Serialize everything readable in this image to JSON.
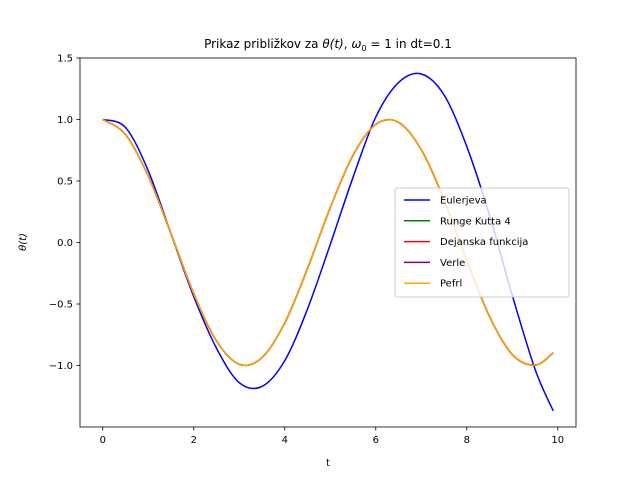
{
  "chart_data": {
    "type": "line",
    "title": "Prikaz približkov za θ(t), ω₀ = 1 in dt=0.1",
    "title_parts": {
      "prefix": "Prikaz približkov za ",
      "theta": "θ(t)",
      "sep": ", ",
      "omega": "ω",
      "omega_sub": "0",
      "suffix": " = 1 in dt=0.1"
    },
    "xlabel": "t",
    "ylabel": "θ(t)",
    "xlim": [
      -0.5,
      10.4
    ],
    "ylim": [
      -1.5,
      1.5
    ],
    "xticks": [
      0,
      2,
      4,
      6,
      8,
      10
    ],
    "xtick_labels": [
      "0",
      "2",
      "4",
      "6",
      "8",
      "10"
    ],
    "yticks": [
      1.5,
      1.0,
      0.5,
      0.0,
      -0.5,
      -1.0
    ],
    "ytick_labels": [
      "1.5",
      "1.0",
      "0.5",
      "0.0",
      "−0.5",
      "−1.0"
    ],
    "grid": false,
    "legend_position": "center-right",
    "series": [
      {
        "name": "Eulerjeva",
        "color": "#0000ff",
        "x": [
          0,
          0.5,
          1,
          1.5,
          2,
          2.5,
          3,
          3.5,
          4,
          4.5,
          5,
          5.5,
          6,
          6.5,
          7,
          7.5,
          8,
          8.5,
          9,
          9.5,
          9.9
        ],
        "y": [
          1.0,
          0.935,
          0.583,
          0.07,
          -0.44,
          -0.86,
          -1.14,
          -1.17,
          -0.96,
          -0.54,
          -0.015,
          0.53,
          1.02,
          1.3,
          1.37,
          1.2,
          0.78,
          0.22,
          -0.43,
          -1.03,
          -1.37
        ]
      },
      {
        "name": "Runge Kutta 4",
        "color": "#008000",
        "x": [
          0,
          0.5,
          1,
          1.5,
          2,
          2.5,
          3,
          3.5,
          4,
          4.5,
          5,
          5.5,
          6,
          6.5,
          7,
          7.5,
          8,
          8.5,
          9,
          9.5,
          9.9
        ],
        "y": [
          1.0,
          0.878,
          0.54,
          0.071,
          -0.416,
          -0.801,
          -0.99,
          -0.936,
          -0.654,
          -0.211,
          0.284,
          0.709,
          0.96,
          0.977,
          0.754,
          0.347,
          -0.146,
          -0.602,
          -0.911,
          -0.997,
          -0.897
        ]
      },
      {
        "name": "Dejanska funkcija",
        "color": "#ff0000",
        "x": [
          0,
          0.5,
          1,
          1.5,
          2,
          2.5,
          3,
          3.5,
          4,
          4.5,
          5,
          5.5,
          6,
          6.5,
          7,
          7.5,
          8,
          8.5,
          9,
          9.5,
          9.9
        ],
        "y": [
          1.0,
          0.878,
          0.54,
          0.071,
          -0.416,
          -0.801,
          -0.99,
          -0.936,
          -0.654,
          -0.211,
          0.284,
          0.709,
          0.96,
          0.977,
          0.754,
          0.347,
          -0.146,
          -0.602,
          -0.911,
          -0.997,
          -0.897
        ]
      },
      {
        "name": "Verle",
        "color": "#800080",
        "x": [
          0,
          0.5,
          1,
          1.5,
          2,
          2.5,
          3,
          3.5,
          4,
          4.5,
          5,
          5.5,
          6,
          6.5,
          7,
          7.5,
          8,
          8.5,
          9,
          9.5,
          9.9
        ],
        "y": [
          1.0,
          0.878,
          0.54,
          0.071,
          -0.416,
          -0.801,
          -0.99,
          -0.936,
          -0.654,
          -0.211,
          0.284,
          0.709,
          0.96,
          0.977,
          0.754,
          0.347,
          -0.146,
          -0.602,
          -0.911,
          -0.997,
          -0.897
        ]
      },
      {
        "name": "Pefrl",
        "color": "#ffa500",
        "x": [
          0,
          0.5,
          1,
          1.5,
          2,
          2.5,
          3,
          3.5,
          4,
          4.5,
          5,
          5.5,
          6,
          6.5,
          7,
          7.5,
          8,
          8.5,
          9,
          9.5,
          9.9
        ],
        "y": [
          1.0,
          0.878,
          0.54,
          0.071,
          -0.416,
          -0.801,
          -0.99,
          -0.936,
          -0.654,
          -0.211,
          0.284,
          0.709,
          0.96,
          0.977,
          0.754,
          0.347,
          -0.146,
          -0.602,
          -0.911,
          -0.997,
          -0.897
        ]
      }
    ]
  }
}
